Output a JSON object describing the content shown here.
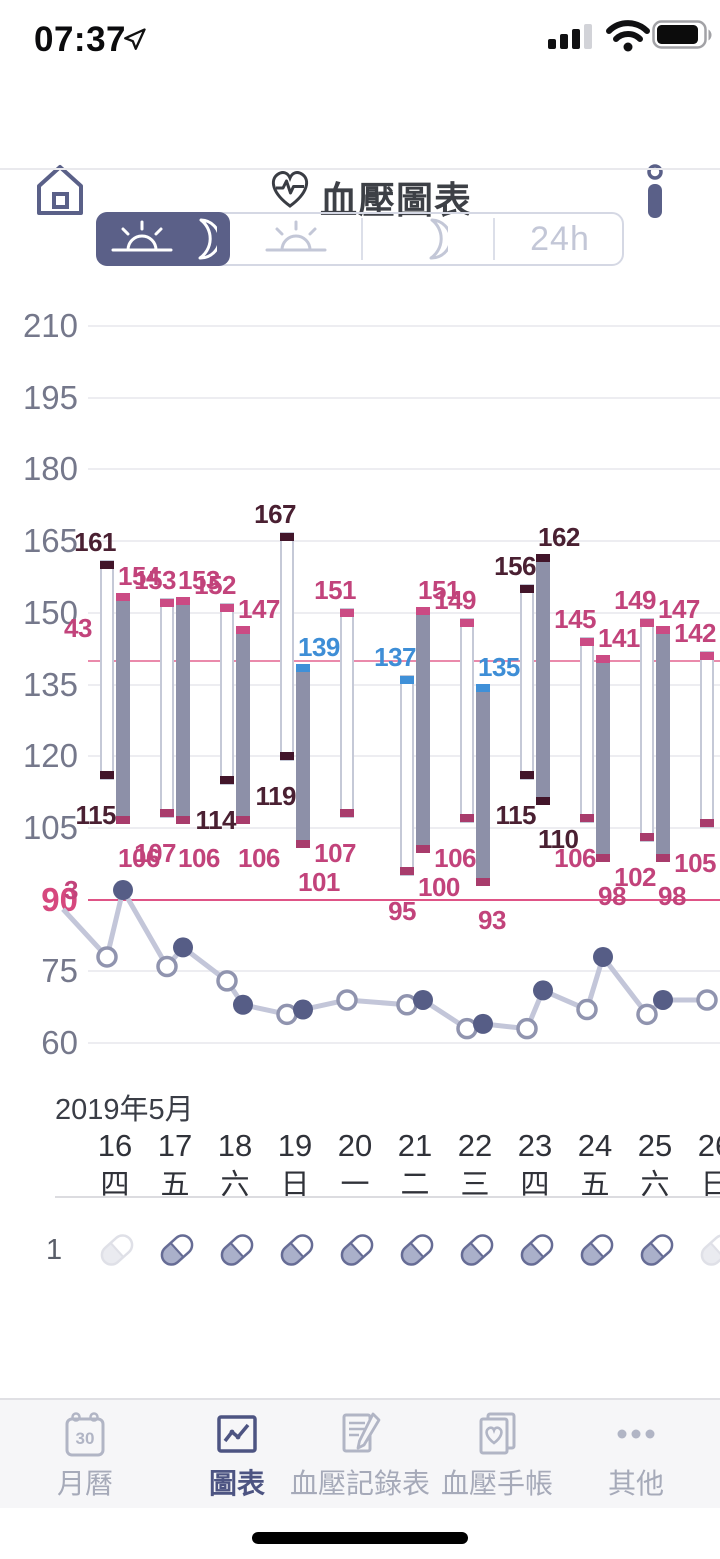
{
  "status_bar": {
    "time": "07:37",
    "icons": [
      "location-arrow-icon",
      "signal-icon",
      "wifi-icon",
      "battery-icon"
    ],
    "signal_bars_filled": 3,
    "signal_bars_total": 4,
    "battery_level": 0.85
  },
  "header": {
    "home_icon": "home-icon",
    "title_icon": "heart-pulse-icon",
    "title": "血壓圖表",
    "info_icon": "info-icon"
  },
  "segmented_control": {
    "options": [
      {
        "name": "day-and-night",
        "icons": [
          "sunrise-icon",
          "moon-icon"
        ],
        "selected": true
      },
      {
        "name": "day",
        "icons": [
          "sunrise-icon"
        ],
        "selected": false
      },
      {
        "name": "night",
        "icons": [
          "moon-icon"
        ],
        "selected": false
      },
      {
        "name": "24h",
        "label": "24h",
        "selected": false
      }
    ]
  },
  "chart_data": {
    "type": "combo-floating-bar-line",
    "title": "血壓圖表",
    "description": "Blood-pressure floating bars (systolic top / diastolic bottom) for day (white outlined bar, open pulse dot) and night (gray bar, filled pulse dot) readings, with pulse line below.",
    "y_axis": {
      "min": 60,
      "max": 210,
      "step": 15,
      "ticks": [
        210,
        195,
        180,
        165,
        150,
        135,
        120,
        105,
        90,
        75,
        60
      ],
      "highlighted_tick": 90
    },
    "reference_lines": [
      {
        "value": 140,
        "role": "systolic-limit"
      },
      {
        "value": 90,
        "role": "diastolic-limit"
      }
    ],
    "days": [
      {
        "date": "16",
        "weekday": "四",
        "pill": false,
        "day": {
          "sys": 161,
          "dia": 115,
          "sys_level": "stage2",
          "dia_level": "stage2",
          "pulse": 78
        },
        "night": {
          "sys": 154,
          "dia": 106,
          "sys_level": "stage1",
          "dia_level": "stage1",
          "pulse": 92
        }
      },
      {
        "date": "17",
        "weekday": "五",
        "pill": true,
        "day": {
          "sys": 153,
          "dia": 107,
          "sys_level": "stage1",
          "dia_level": "stage1",
          "pulse": 76
        },
        "night": {
          "sys": 153,
          "dia": 106,
          "sys_level": "stage1",
          "dia_level": "stage1",
          "pulse": 80
        }
      },
      {
        "date": "18",
        "weekday": "六",
        "pill": true,
        "day": {
          "sys": 152,
          "dia": 114,
          "sys_level": "stage1",
          "dia_level": "stage2",
          "pulse": 73
        },
        "night": {
          "sys": 147,
          "dia": 106,
          "sys_level": "stage1",
          "dia_level": "stage1",
          "pulse": 68
        }
      },
      {
        "date": "19",
        "weekday": "日",
        "pill": true,
        "day": {
          "sys": 167,
          "dia": 119,
          "sys_level": "stage2",
          "dia_level": "stage2",
          "pulse": 66
        },
        "night": {
          "sys": 139,
          "dia": 101,
          "sys_level": "normal",
          "dia_level": "stage1",
          "pulse": 67
        }
      },
      {
        "date": "20",
        "weekday": "一",
        "pill": true,
        "day": {
          "sys": 151,
          "dia": 107,
          "sys_level": "stage1",
          "dia_level": "stage1",
          "pulse": 69
        },
        "night": null
      },
      {
        "date": "21",
        "weekday": "二",
        "pill": true,
        "day": {
          "sys": 137,
          "dia": 95,
          "sys_level": "normal",
          "dia_level": "stage1",
          "pulse": 68
        },
        "night": {
          "sys": 151,
          "dia": 100,
          "sys_level": "stage1",
          "dia_level": "stage1",
          "pulse": 69
        }
      },
      {
        "date": "22",
        "weekday": "三",
        "pill": true,
        "day": {
          "sys": 149,
          "dia": 106,
          "sys_level": "stage1",
          "dia_level": "stage1",
          "pulse": 63
        },
        "night": {
          "sys": 135,
          "dia": 93,
          "sys_level": "normal",
          "dia_level": "stage1",
          "pulse": 64
        }
      },
      {
        "date": "23",
        "weekday": "四",
        "pill": true,
        "day": {
          "sys": 156,
          "dia": 115,
          "sys_level": "stage2",
          "dia_level": "stage2",
          "pulse": 63
        },
        "night": {
          "sys": 162,
          "dia": 110,
          "sys_level": "stage2",
          "dia_level": "stage2",
          "pulse": 71
        }
      },
      {
        "date": "24",
        "weekday": "五",
        "pill": true,
        "day": {
          "sys": 145,
          "dia": 106,
          "sys_level": "stage1",
          "dia_level": "stage1",
          "pulse": 67
        },
        "night": {
          "sys": 141,
          "dia": 98,
          "sys_level": "stage1",
          "dia_level": "stage1",
          "pulse": 78
        }
      },
      {
        "date": "25",
        "weekday": "六",
        "pill": true,
        "day": {
          "sys": 149,
          "dia": 102,
          "sys_level": "stage1",
          "dia_level": "stage1",
          "pulse": 66
        },
        "night": {
          "sys": 147,
          "dia": 98,
          "sys_level": "stage1",
          "dia_level": "stage1",
          "pulse": 69
        }
      },
      {
        "date": "26",
        "weekday": "日",
        "pill": false,
        "day": {
          "sys": 142,
          "dia": 105,
          "sys_level": "stage1",
          "dia_level": "stage1",
          "pulse": 69
        },
        "night": null
      }
    ],
    "clipped_left_edge_labels": [
      {
        "text": "43",
        "level": "stage1"
      },
      {
        "text": "3",
        "level": "stage1"
      }
    ],
    "pulse_lead_in_value": 88
  },
  "calendar": {
    "month_label": "2019年5月"
  },
  "medication": {
    "row_label": "1",
    "pill_icon": "pill-icon"
  },
  "tabbar": {
    "tabs": [
      {
        "label": "月曆",
        "icon": "calendar-icon",
        "icon_text": "30",
        "active": false
      },
      {
        "label": "圖表",
        "icon": "line-chart-icon",
        "active": true
      },
      {
        "label": "血壓記錄表",
        "icon": "record-sheet-icon",
        "active": false
      },
      {
        "label": "血壓手帳",
        "icon": "handbook-icon",
        "active": false
      },
      {
        "label": "其他",
        "icon": "ellipsis-icon",
        "active": false
      }
    ]
  },
  "colors": {
    "accent": "#5b6088",
    "bar_night_fill": "#8d90a8",
    "bar_day_border": "#c5c9d7",
    "pulse_line": "#c3c6d9",
    "pulse_dot_filled": "#565d86",
    "pulse_dot_open_ring": "#9094af",
    "grid": "#ededf1",
    "axis_text": "#75788b",
    "ref_systolic_line": "#ea8aab",
    "ref_diastolic_line": "#df5486",
    "level_normal": "#3f90d8",
    "level_stage1_top": "#cb4b84",
    "level_stage1_bottom": "#a83c6c",
    "level_stage2": "#42152a",
    "label_normal": "#3e8ed6",
    "label_stage1": "#c2437b",
    "label_stage2": "#4a2032",
    "tab_inactive": "#b1b5c5",
    "tab_active": "#4d5482"
  }
}
